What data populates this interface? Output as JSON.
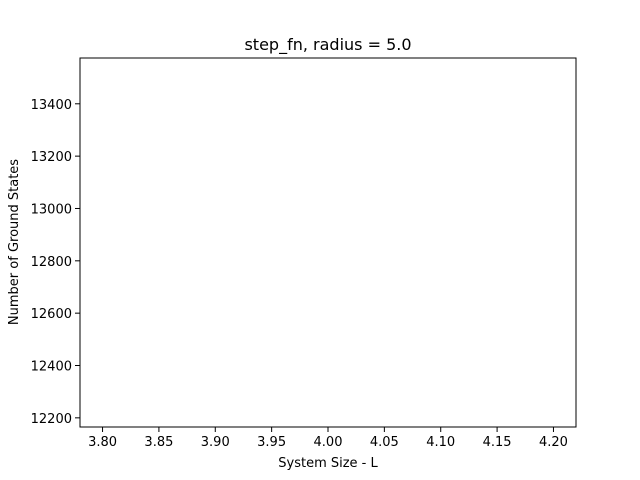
{
  "chart_data": {
    "type": "scatter",
    "title": "step_fn, radius = 5.0",
    "xlabel": "System Size - L",
    "ylabel": "Number of Ground States",
    "xlim": [
      3.78,
      4.22
    ],
    "ylim": [
      12165,
      13575
    ],
    "x_ticks": [
      "3.80",
      "3.85",
      "3.90",
      "3.95",
      "4.00",
      "4.05",
      "4.10",
      "4.15",
      "4.20"
    ],
    "y_ticks": [
      "12200",
      "12400",
      "12600",
      "12800",
      "13000",
      "13200",
      "13400"
    ],
    "grid": false,
    "series": []
  }
}
